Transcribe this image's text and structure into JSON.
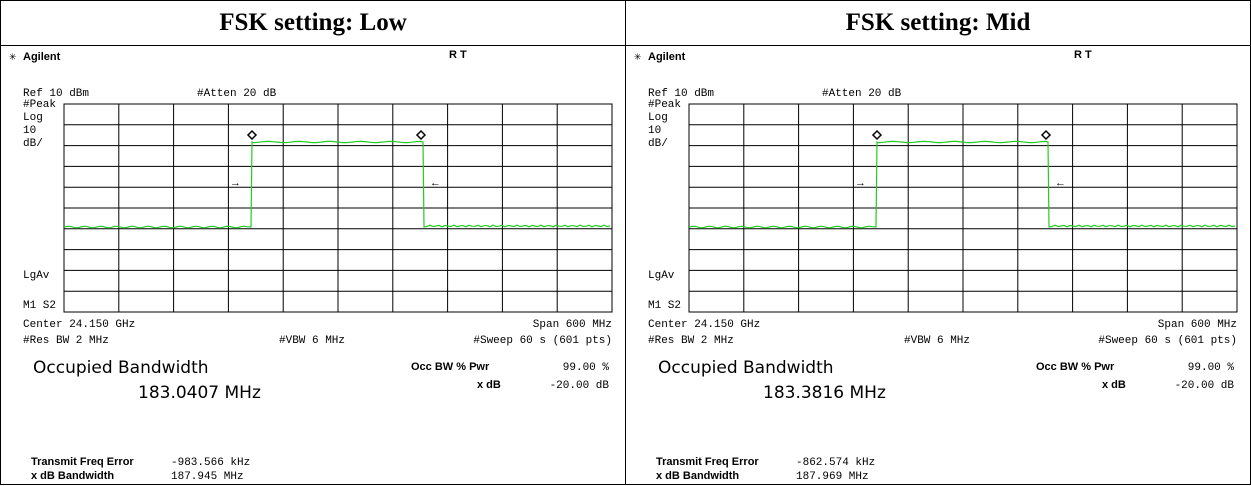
{
  "panels": [
    {
      "header": "FSK setting: Low",
      "brand": "Agilent",
      "status": "R T",
      "ref": "Ref 10 dBm",
      "atten": "#Atten 20 dB",
      "det": "#Peak",
      "scale": "Log",
      "scale_value": "10",
      "scale_unit": "dB/",
      "avg": "LgAv",
      "marker": "M1 S2",
      "center": "Center 24.150 GHz",
      "span": "Span 600 MHz",
      "res_bw": "#Res BW 2 MHz",
      "vbw": "#VBW 6 MHz",
      "sweep": "#Sweep 60 s (601 pts)",
      "meas_title": "Occupied Bandwidth",
      "meas_value": "183.0407 MHz",
      "occ_label": "Occ BW % Pwr",
      "occ_value": "99.00 %",
      "xdb_label": "x dB",
      "xdb_value": "-20.00 dB",
      "freq_err_label": "Transmit Freq Error",
      "freq_err_value": "-983.566 kHz",
      "xdb_bw_label": "x dB Bandwidth",
      "xdb_bw_value": "187.945 MHz"
    },
    {
      "header": "FSK setting: Mid",
      "brand": "Agilent",
      "status": "R T",
      "ref": "Ref 10 dBm",
      "atten": "#Atten 20 dB",
      "det": "#Peak",
      "scale": "Log",
      "scale_value": "10",
      "scale_unit": "dB/",
      "avg": "LgAv",
      "marker": "M1 S2",
      "center": "Center 24.150 GHz",
      "span": "Span 600 MHz",
      "res_bw": "#Res BW 2 MHz",
      "vbw": "#VBW 6 MHz",
      "sweep": "#Sweep 60 s (601 pts)",
      "meas_title": "Occupied Bandwidth",
      "meas_value": "183.3816 MHz",
      "occ_label": "Occ BW % Pwr",
      "occ_value": "99.00 %",
      "xdb_label": "x dB",
      "xdb_value": "-20.00 dB",
      "freq_err_label": "Transmit Freq Error",
      "freq_err_value": "-862.574 kHz",
      "xdb_bw_label": "x dB Bandwidth",
      "xdb_bw_value": "187.969 MHz"
    }
  ]
}
